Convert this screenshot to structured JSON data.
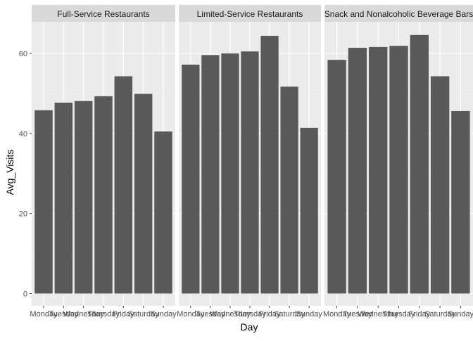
{
  "chart_data": {
    "type": "bar",
    "facet_by": "category",
    "xlabel": "Day",
    "ylabel": "Avg_Visits",
    "ylim": [
      0,
      70
    ],
    "yticks": [
      0,
      20,
      40,
      60
    ],
    "grid": true,
    "categories": [
      "Monday",
      "Tuesday",
      "Wednesday",
      "Thursday",
      "Friday",
      "Saturday",
      "Sunday"
    ],
    "facets": [
      {
        "name": "Full-Service Restaurants",
        "values": [
          45.8,
          47.7,
          48.1,
          49.3,
          54.3,
          49.9,
          40.5
        ]
      },
      {
        "name": "Limited-Service Restaurants",
        "values": [
          57.2,
          59.6,
          60.0,
          60.5,
          64.4,
          51.7,
          41.4
        ]
      },
      {
        "name": "Snack and Nonalcoholic Beverage Bars",
        "values": [
          58.4,
          61.4,
          61.6,
          61.9,
          64.6,
          54.3,
          45.6
        ]
      }
    ],
    "colors": {
      "panel_bg": "#EBEBEB",
      "strip_bg": "#D9D9D9",
      "bar": "#595959",
      "grid_major": "#FFFFFF",
      "tick": "#333333"
    }
  }
}
